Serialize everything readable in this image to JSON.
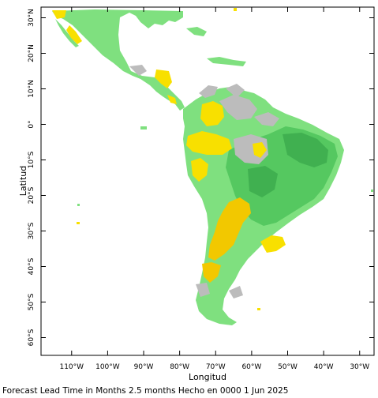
{
  "map": {
    "x_axis_title": "Longitud",
    "y_axis_title": "Latitud",
    "lon_ticks": [
      {
        "value": -110,
        "label": "110°W"
      },
      {
        "value": -100,
        "label": "100°W"
      },
      {
        "value": -90,
        "label": "90°W"
      },
      {
        "value": -80,
        "label": "80°W"
      },
      {
        "value": -70,
        "label": "70°W"
      },
      {
        "value": -60,
        "label": "60°W"
      },
      {
        "value": -50,
        "label": "50°W"
      },
      {
        "value": -40,
        "label": "40°W"
      },
      {
        "value": -30,
        "label": "30°W"
      }
    ],
    "lat_ticks": [
      {
        "value": 30,
        "label": "30°N"
      },
      {
        "value": 20,
        "label": "20°N"
      },
      {
        "value": 10,
        "label": "10°N"
      },
      {
        "value": 0,
        "label": "0°"
      },
      {
        "value": -10,
        "label": "10°S"
      },
      {
        "value": -20,
        "label": "20°S"
      },
      {
        "value": -30,
        "label": "30°S"
      },
      {
        "value": -40,
        "label": "40°S"
      },
      {
        "value": -50,
        "label": "50°S"
      },
      {
        "value": -60,
        "label": "60°S"
      }
    ],
    "lon_range": [
      -118.5,
      -26
    ],
    "lat_range": [
      -65,
      33
    ],
    "colors": {
      "light_green": "#7fe07f",
      "mid_green": "#55c860",
      "dark_green": "#40b050",
      "yellow": "#f8e000",
      "orange_yellow": "#f2c800",
      "gray": "#bcbcbc",
      "frame": "#000000"
    }
  },
  "footer": {
    "text": "Forecast Lead Time in Months 2.5 months Hecho en 0000 1 Jun 2025"
  }
}
